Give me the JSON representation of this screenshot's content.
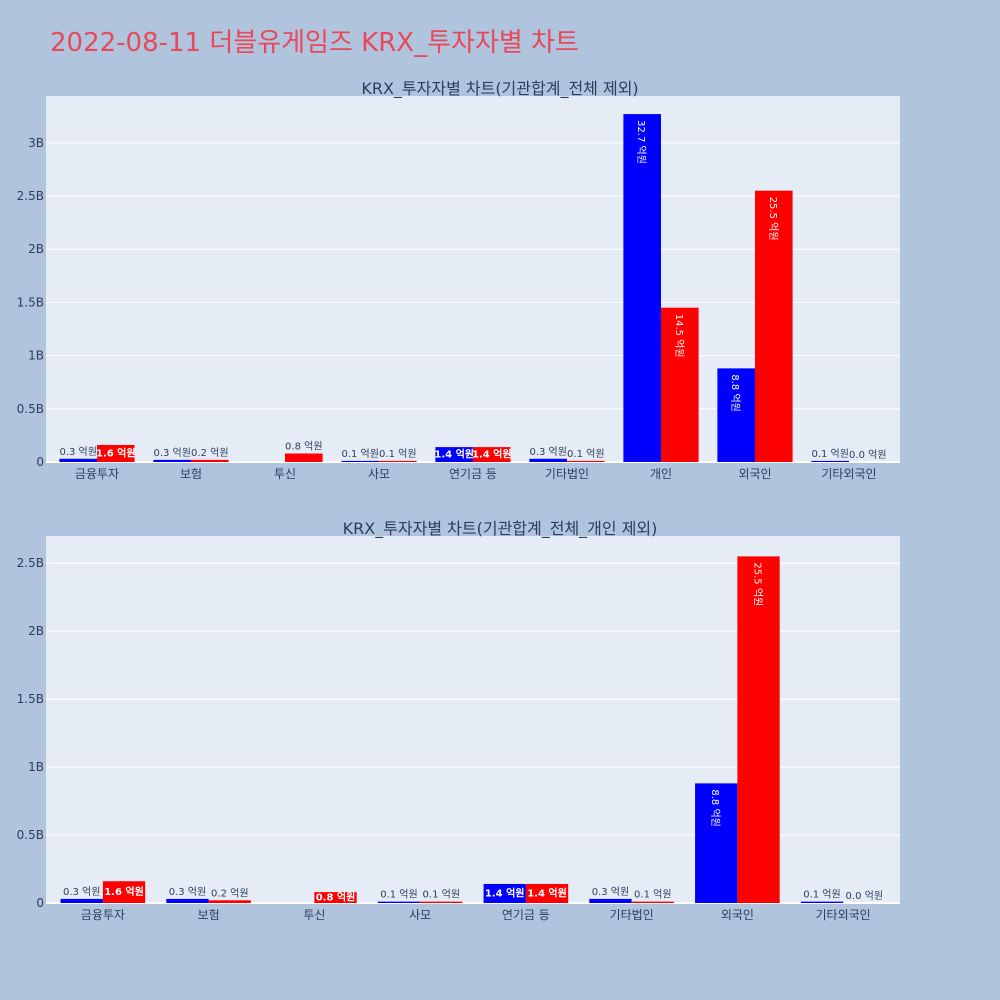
{
  "page": {
    "title": "2022-08-11 더블유게임즈 KRX_투자자별 차트",
    "background": "#b0c4de",
    "plot_background": "#e5ecf6",
    "title_color": "#e8485a"
  },
  "series_colors": {
    "blue": "#0000ff",
    "red": "#ff0000"
  },
  "chart_data": [
    {
      "type": "bar",
      "title": "KRX_투자자별 차트(기관합계_전체 제외)",
      "categories": [
        "금융투자",
        "보험",
        "투신",
        "사모",
        "연기금 등",
        "기타법인",
        "개인",
        "외국인",
        "기타외국인"
      ],
      "series": [
        {
          "color": "#0000ff",
          "values": [
            30000000,
            20000000,
            0,
            10000000,
            140000000,
            30000000,
            3270000000,
            880000000,
            10000000
          ]
        },
        {
          "color": "#ff0000",
          "values": [
            160000000,
            20000000,
            80000000,
            10000000,
            140000000,
            10000000,
            1450000000,
            2550000000,
            0
          ]
        }
      ],
      "bar_labels": [
        [
          "0.3 억원",
          "0.3 억원",
          "",
          "0.1 억원",
          "1.4 억원",
          "0.3 억원",
          "32.7 억원",
          "8.8 억원",
          "0.1 억원"
        ],
        [
          "1.6 억원",
          "0.2 억원",
          "0.8 억원",
          "0.1 억원",
          "1.4 억원",
          "0.1 억원",
          "14.5 억원",
          "25.5 억원",
          "0.0 억원"
        ]
      ],
      "y_ticks": [
        0,
        500000000,
        1000000000,
        1500000000,
        2000000000,
        2500000000,
        3000000000
      ],
      "y_tick_labels": [
        "0",
        "0.5B",
        "1B",
        "1.5B",
        "2B",
        "2.5B",
        "3B"
      ],
      "ylim": [
        0,
        3440000000
      ],
      "grid": true
    },
    {
      "type": "bar",
      "title": "KRX_투자자별 차트(기관합계_전체_개인 제외)",
      "categories": [
        "금융투자",
        "보험",
        "투신",
        "사모",
        "연기금 등",
        "기타법인",
        "외국인",
        "기타외국인"
      ],
      "series": [
        {
          "color": "#0000ff",
          "values": [
            30000000,
            30000000,
            0,
            10000000,
            140000000,
            30000000,
            880000000,
            10000000
          ]
        },
        {
          "color": "#ff0000",
          "values": [
            160000000,
            20000000,
            80000000,
            10000000,
            140000000,
            10000000,
            2550000000,
            0
          ]
        }
      ],
      "bar_labels": [
        [
          "0.3 억원",
          "0.3 억원",
          "",
          "0.1 억원",
          "1.4 억원",
          "0.3 억원",
          "8.8 억원",
          "0.1 억원"
        ],
        [
          "1.6 억원",
          "0.2 억원",
          "0.8 억원",
          "0.1 억원",
          "1.4 억원",
          "0.1 억원",
          "25.5 억원",
          "0.0 억원"
        ]
      ],
      "y_ticks": [
        0,
        500000000,
        1000000000,
        1500000000,
        2000000000,
        2500000000
      ],
      "y_tick_labels": [
        "0",
        "0.5B",
        "1B",
        "1.5B",
        "2B",
        "2.5B"
      ],
      "ylim": [
        0,
        2700000000
      ],
      "grid": true
    }
  ]
}
